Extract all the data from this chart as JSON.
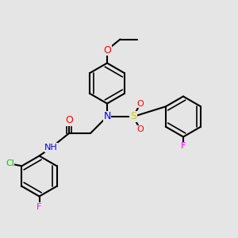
{
  "background_color": "#e5e5e5",
  "bond_color": "#000000",
  "bond_width": 1.5,
  "atom_colors": {
    "N": "#0000ff",
    "O": "#ff0000",
    "S": "#cccc00",
    "F": "#ff00ff",
    "Cl": "#00cc00",
    "H": "#888888",
    "C": "#000000"
  },
  "font_size": 8
}
